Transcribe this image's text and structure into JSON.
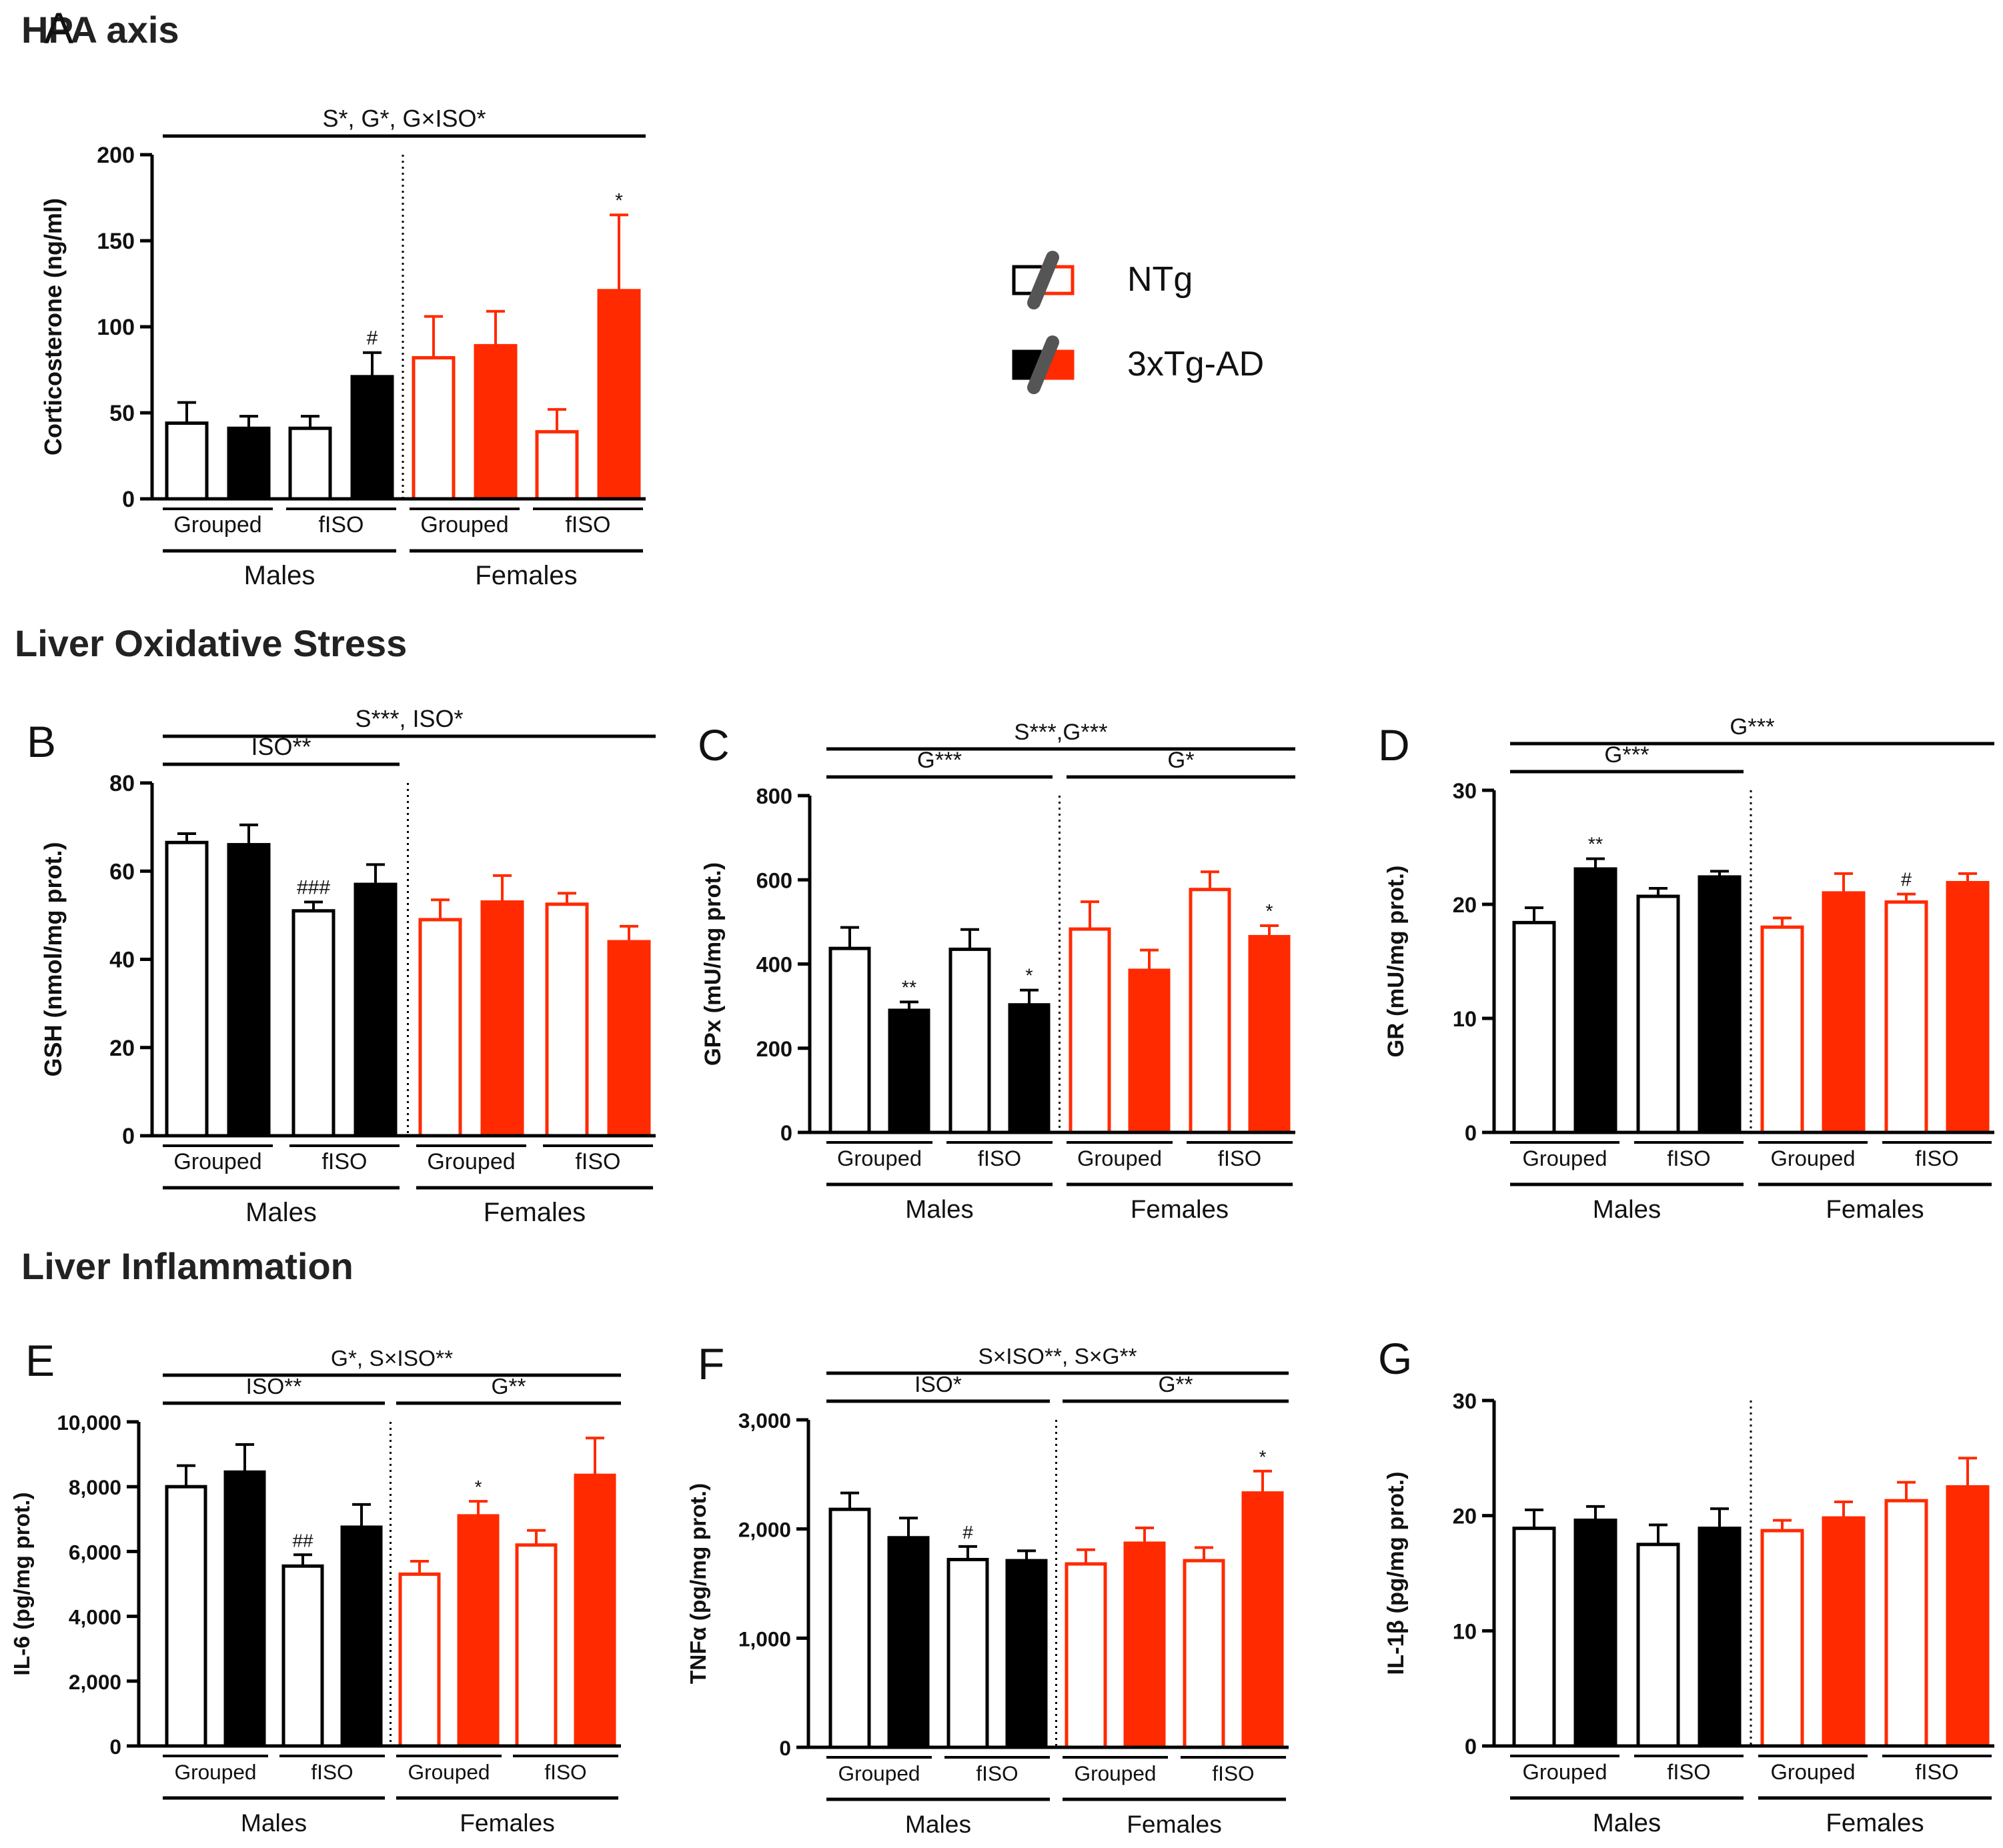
{
  "figure": {
    "sections": [
      {
        "title": "HPA axis"
      },
      {
        "title": "Liver Oxidative Stress"
      },
      {
        "title": "Liver Inflammation"
      }
    ],
    "legend": {
      "items": [
        {
          "label": "NTg",
          "style": "open"
        },
        {
          "label": "3xTg-AD",
          "style": "filled"
        }
      ]
    },
    "colors": {
      "male": "#000000",
      "female": "#ff2a00",
      "text": "#111111",
      "title": "#222222"
    }
  },
  "chart_data": [
    {
      "panel": "A",
      "type": "bar",
      "section": "HPA axis",
      "ylabel": "Corticosterone (ng/ml)",
      "ylim": [
        0,
        200
      ],
      "yticks": [
        "0",
        "50",
        "100",
        "150",
        "200"
      ],
      "groups": [
        {
          "label": "Grouped",
          "sex": "Males",
          "values": [
            44,
            41
          ],
          "errors": [
            12,
            7
          ],
          "annotations": [
            "",
            ""
          ]
        },
        {
          "label": "fISO",
          "sex": "Males",
          "values": [
            41,
            71
          ],
          "errors": [
            7,
            14
          ],
          "annotations": [
            "",
            "#"
          ]
        },
        {
          "label": "Grouped",
          "sex": "Females",
          "values": [
            82,
            89
          ],
          "errors": [
            24,
            20
          ],
          "annotations": [
            "",
            ""
          ]
        },
        {
          "label": "fISO",
          "sex": "Females",
          "values": [
            39,
            121
          ],
          "errors": [
            13,
            44
          ],
          "annotations": [
            "",
            "*"
          ]
        }
      ],
      "sex_labels": [
        "Males",
        "Females"
      ],
      "stats": [
        {
          "text": "S*, G*, G×ISO*",
          "span": "all",
          "level": 0
        }
      ]
    },
    {
      "panel": "B",
      "type": "bar",
      "section": "Liver Oxidative Stress",
      "ylabel": "GSH (nmol/mg prot.)",
      "ylim": [
        0,
        80
      ],
      "yticks": [
        "0",
        "20",
        "40",
        "60",
        "80"
      ],
      "groups": [
        {
          "label": "Grouped",
          "sex": "Males",
          "values": [
            66.5,
            66
          ],
          "errors": [
            2,
            4.5
          ],
          "annotations": [
            "",
            ""
          ]
        },
        {
          "label": "fISO",
          "sex": "Males",
          "values": [
            51,
            57
          ],
          "errors": [
            2,
            4.5
          ],
          "annotations": [
            "###",
            ""
          ]
        },
        {
          "label": "Grouped",
          "sex": "Females",
          "values": [
            49,
            53
          ],
          "errors": [
            4.5,
            6
          ],
          "annotations": [
            "",
            ""
          ]
        },
        {
          "label": "fISO",
          "sex": "Females",
          "values": [
            52.5,
            44
          ],
          "errors": [
            2.5,
            3.5
          ],
          "annotations": [
            "",
            ""
          ]
        }
      ],
      "sex_labels": [
        "Males",
        "Females"
      ],
      "stats": [
        {
          "text": "S***, ISO*",
          "span": "all",
          "level": 0
        },
        {
          "text": "ISO**",
          "span": "males",
          "level": 1
        }
      ]
    },
    {
      "panel": "C",
      "type": "bar",
      "section": "Liver Oxidative Stress",
      "ylabel": "GPx (mU/mg prot.)",
      "ylim": [
        0,
        800
      ],
      "yticks": [
        "0",
        "200",
        "400",
        "600",
        "800"
      ],
      "groups": [
        {
          "label": "Grouped",
          "sex": "Males",
          "values": [
            437,
            290
          ],
          "errors": [
            50,
            20
          ],
          "annotations": [
            "",
            "**"
          ]
        },
        {
          "label": "fISO",
          "sex": "Males",
          "values": [
            435,
            303
          ],
          "errors": [
            47,
            35
          ],
          "annotations": [
            "",
            "*"
          ]
        },
        {
          "label": "Grouped",
          "sex": "Females",
          "values": [
            483,
            385
          ],
          "errors": [
            65,
            48
          ],
          "annotations": [
            "",
            ""
          ]
        },
        {
          "label": "fISO",
          "sex": "Females",
          "values": [
            577,
            465
          ],
          "errors": [
            42,
            26
          ],
          "annotations": [
            "",
            "*"
          ]
        }
      ],
      "sex_labels": [
        "Males",
        "Females"
      ],
      "stats": [
        {
          "text": "S***,G***",
          "span": "all",
          "level": 0
        },
        {
          "text": "G***",
          "span": "males",
          "level": 1
        },
        {
          "text": "G*",
          "span": "females",
          "level": 1
        }
      ]
    },
    {
      "panel": "D",
      "type": "bar",
      "section": "Liver Oxidative Stress",
      "ylabel": "GR (mU/mg prot.)",
      "ylim": [
        0,
        30
      ],
      "yticks": [
        "0",
        "10",
        "20",
        "30"
      ],
      "groups": [
        {
          "label": "Grouped",
          "sex": "Males",
          "values": [
            18.4,
            23.1
          ],
          "errors": [
            1.3,
            0.9
          ],
          "annotations": [
            "",
            "**"
          ]
        },
        {
          "label": "fISO",
          "sex": "Males",
          "values": [
            20.7,
            22.4
          ],
          "errors": [
            0.7,
            0.5
          ],
          "annotations": [
            "",
            ""
          ]
        },
        {
          "label": "Grouped",
          "sex": "Females",
          "values": [
            18,
            21
          ],
          "errors": [
            0.8,
            1.7
          ],
          "annotations": [
            "",
            ""
          ]
        },
        {
          "label": "fISO",
          "sex": "Females",
          "values": [
            20.2,
            21.9
          ],
          "errors": [
            0.7,
            0.8
          ],
          "annotations": [
            "#",
            ""
          ]
        }
      ],
      "sex_labels": [
        "Males",
        "Females"
      ],
      "stats": [
        {
          "text": "G***",
          "span": "all",
          "level": 0
        },
        {
          "text": "G***",
          "span": "males",
          "level": 1
        }
      ]
    },
    {
      "panel": "E",
      "type": "bar",
      "section": "Liver Inflammation",
      "ylabel": "IL-6 (pg/mg prot.)",
      "ylim": [
        0,
        10000
      ],
      "yticks": [
        "0",
        "2,000",
        "4,000",
        "6,000",
        "8,000",
        "10,000"
      ],
      "groups": [
        {
          "label": "Grouped",
          "sex": "Males",
          "values": [
            8000,
            8450
          ],
          "errors": [
            650,
            850
          ],
          "annotations": [
            "",
            ""
          ]
        },
        {
          "label": "fISO",
          "sex": "Males",
          "values": [
            5550,
            6750
          ],
          "errors": [
            350,
            700
          ],
          "annotations": [
            "##",
            ""
          ]
        },
        {
          "label": "Grouped",
          "sex": "Females",
          "values": [
            5300,
            7100
          ],
          "errors": [
            400,
            450
          ],
          "annotations": [
            "",
            "*"
          ]
        },
        {
          "label": "fISO",
          "sex": "Females",
          "values": [
            6200,
            8350
          ],
          "errors": [
            450,
            1150
          ],
          "annotations": [
            "",
            ""
          ]
        }
      ],
      "sex_labels": [
        "Males",
        "Females"
      ],
      "stats": [
        {
          "text": "G*, S×ISO**",
          "span": "all",
          "level": 0
        },
        {
          "text": "ISO**",
          "span": "males",
          "level": 1
        },
        {
          "text": "G**",
          "span": "females",
          "level": 1
        }
      ]
    },
    {
      "panel": "F",
      "type": "bar",
      "section": "Liver Inflammation",
      "ylabel": "TNFα (pg/mg prot.)",
      "ylim": [
        0,
        3000
      ],
      "yticks": [
        "0",
        "1,000",
        "2,000",
        "3,000"
      ],
      "groups": [
        {
          "label": "Grouped",
          "sex": "Males",
          "values": [
            2180,
            1920
          ],
          "errors": [
            150,
            180
          ],
          "annotations": [
            "",
            ""
          ]
        },
        {
          "label": "fISO",
          "sex": "Males",
          "values": [
            1720,
            1710
          ],
          "errors": [
            120,
            90
          ],
          "annotations": [
            "#",
            ""
          ]
        },
        {
          "label": "Grouped",
          "sex": "Females",
          "values": [
            1680,
            1870
          ],
          "errors": [
            130,
            140
          ],
          "annotations": [
            "",
            ""
          ]
        },
        {
          "label": "fISO",
          "sex": "Females",
          "values": [
            1710,
            2330
          ],
          "errors": [
            120,
            200
          ],
          "annotations": [
            "",
            "*"
          ]
        }
      ],
      "sex_labels": [
        "Males",
        "Females"
      ],
      "stats": [
        {
          "text": "S×ISO**, S×G**",
          "span": "all",
          "level": 0
        },
        {
          "text": "ISO*",
          "span": "males",
          "level": 1
        },
        {
          "text": "G**",
          "span": "females",
          "level": 1
        }
      ]
    },
    {
      "panel": "G",
      "type": "bar",
      "section": "Liver Inflammation",
      "ylabel": "IL-1β (pg/mg prot.)",
      "ylim": [
        0,
        30
      ],
      "yticks": [
        "0",
        "10",
        "20",
        "30"
      ],
      "groups": [
        {
          "label": "Grouped",
          "sex": "Males",
          "values": [
            18.9,
            19.6
          ],
          "errors": [
            1.6,
            1.2
          ],
          "annotations": [
            "",
            ""
          ]
        },
        {
          "label": "fISO",
          "sex": "Males",
          "values": [
            17.5,
            18.9
          ],
          "errors": [
            1.7,
            1.7
          ],
          "annotations": [
            "",
            ""
          ]
        },
        {
          "label": "Grouped",
          "sex": "Females",
          "values": [
            18.7,
            19.8
          ],
          "errors": [
            0.9,
            1.4
          ],
          "annotations": [
            "",
            ""
          ]
        },
        {
          "label": "fISO",
          "sex": "Females",
          "values": [
            21.3,
            22.5
          ],
          "errors": [
            1.6,
            2.5
          ],
          "annotations": [
            "",
            ""
          ]
        }
      ],
      "sex_labels": [
        "Males",
        "Females"
      ],
      "stats": []
    }
  ]
}
